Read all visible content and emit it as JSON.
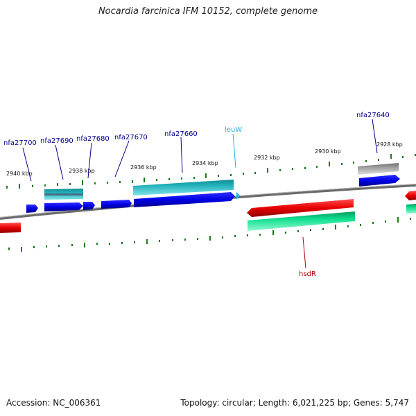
{
  "title": "Nocardia farcinica IFM 10152, complete genome",
  "footer": {
    "accession": "Accession: NC_006361",
    "summary": "Topology: circular; Length: 6,021,225 bp; Genes: 5,747"
  },
  "kbp_labels": [
    "2940 kbp",
    "2938 kbp",
    "2936 kbp",
    "2934 kbp",
    "2932 kbp",
    "2930 kbp",
    "2928 kbp"
  ],
  "gene_labels": {
    "nfa27700": "nfa27700",
    "nfa27690": "nfa27690",
    "nfa27680": "nfa27680",
    "nfa27670": "nfa27670",
    "nfa27660": "nfa27660",
    "leuW": "leuW",
    "nfa27640": "nfa27640",
    "hsdR": "hsdR"
  },
  "colors": {
    "gene_label": "#00008b",
    "trna_label": "#1fb4e8",
    "hsdR_label": "#b40000",
    "cds_forward": "#0000e6",
    "cds_reverse": "#e60000",
    "teal_feature": "#20b0b8",
    "green_feature": "#10e090",
    "gray_feature": "#a0a0a0",
    "tick": "#1a7a1a",
    "backbone": "#808080"
  }
}
